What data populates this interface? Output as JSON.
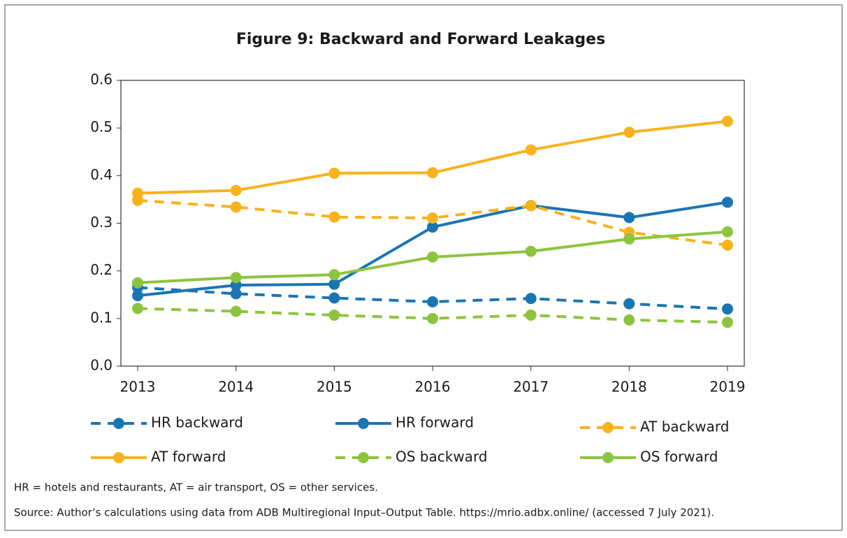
{
  "chart_data": {
    "type": "line",
    "title": "Figure 9: Backward and Forward Leakages",
    "categories": [
      "2013",
      "2014",
      "2015",
      "2016",
      "2017",
      "2018",
      "2019"
    ],
    "series": [
      {
        "name": "HR backward",
        "color": "#1b75b3",
        "style": "dashed",
        "values": [
          0.165,
          0.152,
          0.143,
          0.135,
          0.142,
          0.131,
          0.12
        ]
      },
      {
        "name": "HR forward",
        "color": "#1b75b3",
        "style": "solid",
        "values": [
          0.148,
          0.17,
          0.172,
          0.292,
          0.337,
          0.312,
          0.344
        ]
      },
      {
        "name": "AT backward",
        "color": "#f8b21c",
        "style": "dashed",
        "values": [
          0.348,
          0.334,
          0.313,
          0.311,
          0.337,
          0.281,
          0.254
        ]
      },
      {
        "name": "AT forward",
        "color": "#f8b21c",
        "style": "solid",
        "values": [
          0.363,
          0.369,
          0.405,
          0.406,
          0.454,
          0.491,
          0.514
        ]
      },
      {
        "name": "OS backward",
        "color": "#8cc43f",
        "style": "dashed",
        "values": [
          0.121,
          0.115,
          0.107,
          0.1,
          0.107,
          0.097,
          0.092
        ]
      },
      {
        "name": "OS forward",
        "color": "#8cc43f",
        "style": "solid",
        "values": [
          0.175,
          0.186,
          0.192,
          0.229,
          0.241,
          0.267,
          0.282
        ]
      }
    ],
    "ylim": [
      0,
      0.6
    ],
    "yticks": [
      {
        "value": 0,
        "label": "0.0"
      },
      0.1,
      0.2,
      0.3,
      0.4,
      0.5,
      0.6
    ],
    "notes": [
      "HR = hotels and restaurants, AT = air transport, OS = other services.",
      "Source: Author’s calculations using data from ADB Multiregional Input–Output Table. https://mrio.adbx.online/ (accessed 7 July 2021)."
    ]
  }
}
